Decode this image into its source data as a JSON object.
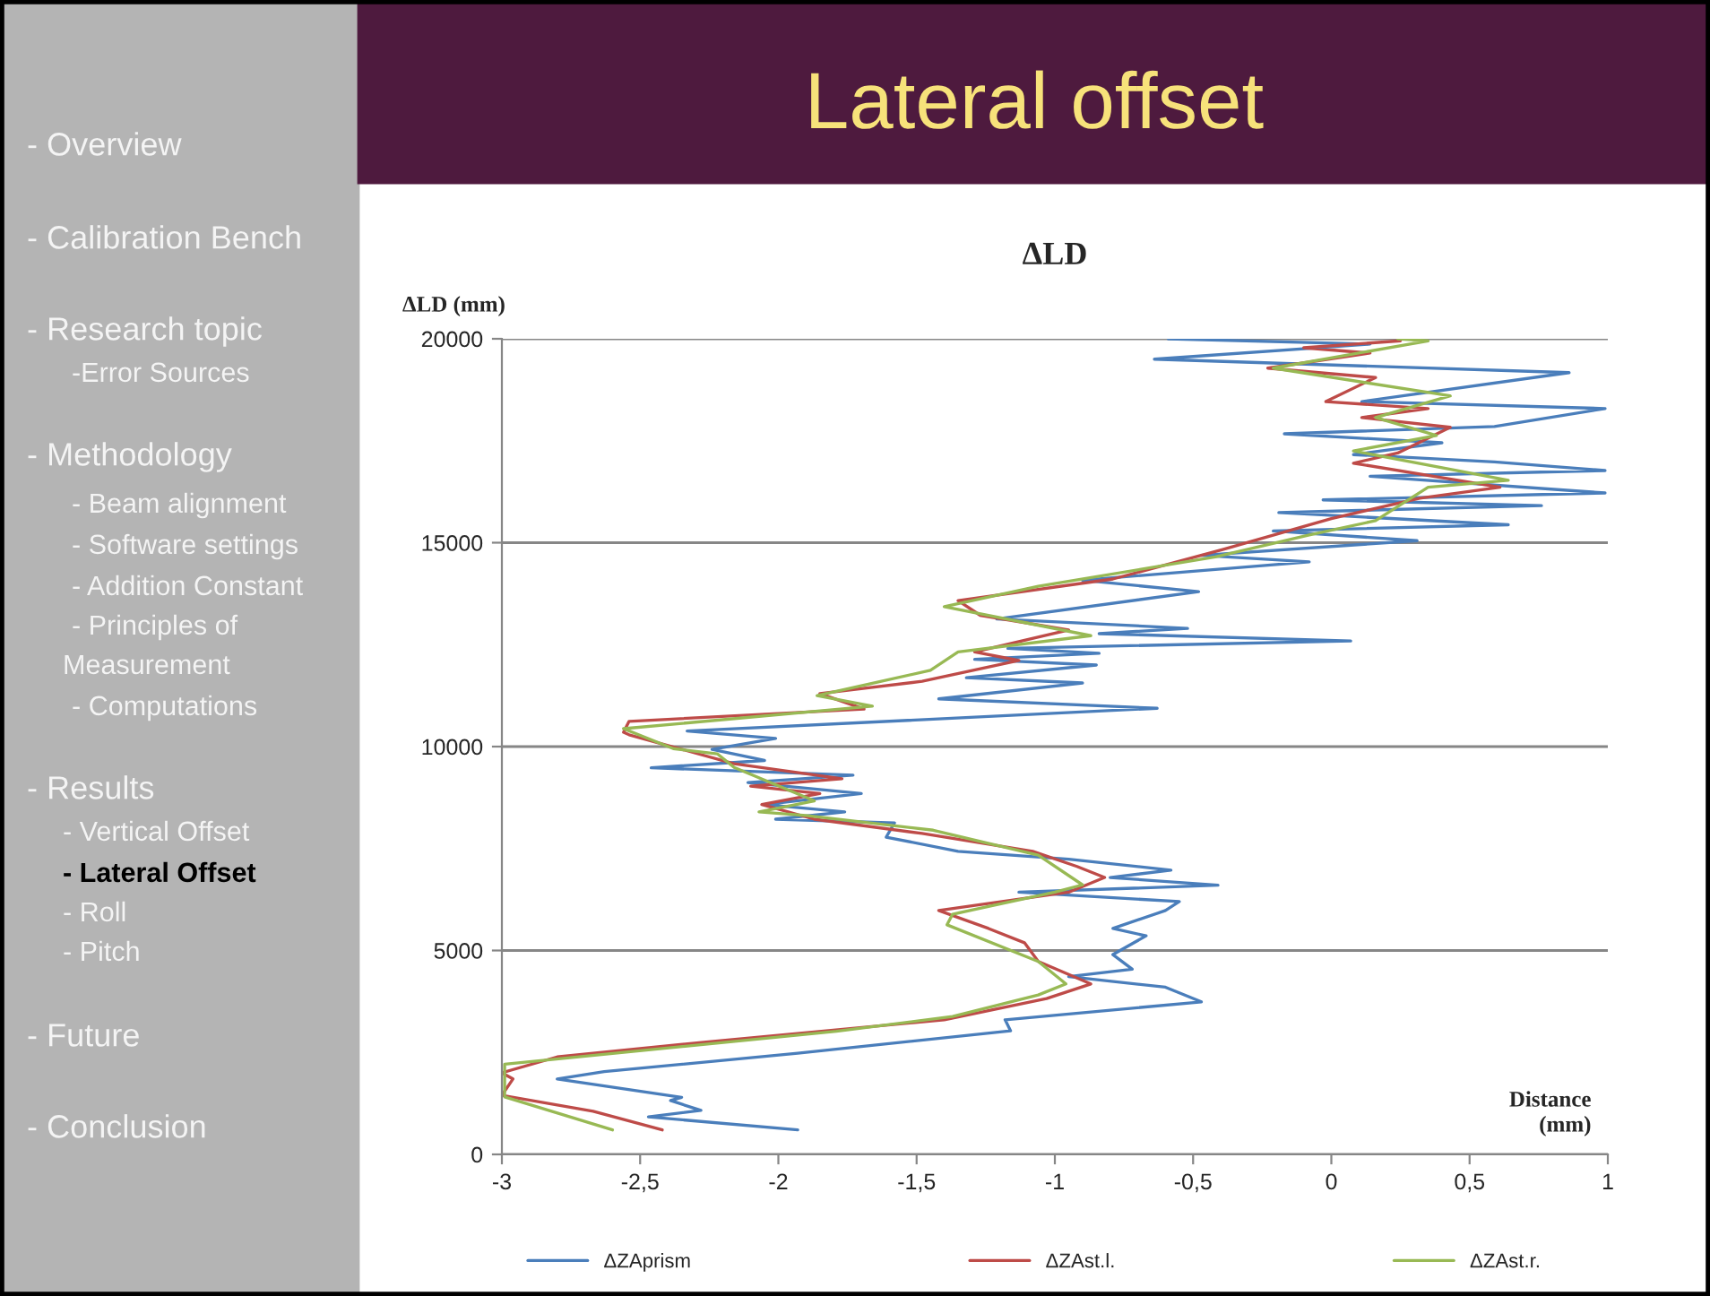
{
  "chart_data": {
    "type": "line",
    "title": "Lateral offset",
    "subtitle": "ΔLD",
    "ylabel": "ΔLD (mm)",
    "xlabel": "Distance (mm)",
    "xlim": [
      -3,
      1
    ],
    "xticks": [
      -3,
      {
        "value": -2.5,
        "label": "-2,5"
      },
      -2,
      {
        "value": -1.5,
        "label": "-1,5"
      },
      -1,
      {
        "value": -0.5,
        "label": "-0,5"
      },
      0,
      {
        "value": 0.5,
        "label": "0,5"
      },
      1
    ],
    "ylim": [
      0,
      20000
    ],
    "yticks": [
      0,
      5000,
      10000,
      15000,
      20000
    ],
    "grid": "y",
    "legend": "bottom",
    "line_style": "solid",
    "annotations": [
      "- Overview",
      "- Calibration Bench",
      "- Research topic",
      "-Error Sources",
      "- Methodology",
      "- Beam alignment",
      "- Software settings",
      "- Addition Constant",
      "- Principles of",
      "Measurement",
      "- Computations",
      "- Results",
      "- Vertical Offset",
      "- Lateral Offset",
      "- Roll",
      "- Pitch",
      "- Future",
      "- Conclusion"
    ],
    "series": [
      {
        "name": "ΔZAprism",
        "color": "#4a7ebb",
        "x": [
          -1.93,
          -2.47,
          -2.28,
          -2.39,
          -2.35,
          -2.8,
          -2.63,
          -1.93,
          -1.16,
          -1.18,
          -0.47,
          -0.6,
          -0.95,
          -0.72,
          -0.79,
          -0.67,
          -0.79,
          -0.6,
          -0.55,
          -1.13,
          -0.41,
          -0.8,
          -0.58,
          -0.95,
          -1.35,
          -1.61,
          -1.58,
          -2.01,
          -1.76,
          -2.05,
          -1.7,
          -2.11,
          -1.73,
          -2.46,
          -2.05,
          -2.24,
          -2.01,
          -2.33,
          -0.63,
          -1.42,
          -0.9,
          -1.32,
          -0.85,
          -1.29,
          -0.84,
          -1.17,
          0.07,
          -0.84,
          -0.52,
          -1.21,
          -0.48,
          -0.9,
          -0.08,
          -0.47,
          0.31,
          -0.21,
          0.64,
          -0.19,
          0.76,
          -0.03,
          0.99,
          0.14,
          0.99,
          0.59,
          0.08,
          0.4,
          -0.17,
          0.59,
          0.99,
          0.11,
          0.86,
          -0.64,
          0.14,
          -0.59
        ],
        "values": [
          600,
          920,
          1080,
          1320,
          1400,
          1850,
          2030,
          2480,
          3030,
          3300,
          3740,
          4100,
          4360,
          4540,
          4900,
          5360,
          5540,
          5980,
          6200,
          6430,
          6600,
          6790,
          6970,
          7240,
          7430,
          7780,
          8130,
          8220,
          8400,
          8580,
          8850,
          9120,
          9300,
          9480,
          9660,
          9930,
          10200,
          10380,
          10940,
          11170,
          11560,
          11690,
          12000,
          12140,
          12290,
          12410,
          12590,
          12770,
          12900,
          13130,
          13800,
          14080,
          14530,
          14690,
          15050,
          15290,
          15440,
          15740,
          15910,
          16050,
          16220,
          16630,
          16770,
          16980,
          17160,
          17450,
          17670,
          17850,
          18290,
          18460,
          19170,
          19500,
          19870,
          20000
        ]
      },
      {
        "name": "ΔZAst.l.",
        "color": "#be4b48",
        "x": [
          -2.42,
          -2.67,
          -3.0,
          -2.96,
          -3.0,
          -2.8,
          -2.27,
          -1.4,
          -1.03,
          -0.87,
          -1.06,
          -1.11,
          -1.24,
          -1.42,
          -0.95,
          -0.82,
          -0.92,
          -1.08,
          -1.48,
          -1.87,
          -2.06,
          -1.85,
          -2.1,
          -1.77,
          -2.16,
          -2.54,
          -2.56,
          -2.54,
          -1.69,
          -1.85,
          -1.48,
          -1.13,
          -1.29,
          -0.95,
          -1.27,
          -1.35,
          -0.79,
          -0.39,
          0.0,
          0.32,
          0.61,
          0.08,
          0.24,
          0.43,
          0.11,
          0.35,
          -0.02,
          0.16,
          -0.23,
          0.14,
          -0.1,
          0.25
        ],
        "values": [
          600,
          1060,
          1450,
          1850,
          2000,
          2390,
          2750,
          3300,
          3820,
          4180,
          4730,
          5190,
          5540,
          5980,
          6430,
          6790,
          7060,
          7430,
          7870,
          8220,
          8580,
          8850,
          9030,
          9210,
          9580,
          10290,
          10350,
          10620,
          10920,
          11300,
          11600,
          12110,
          12320,
          12860,
          13220,
          13580,
          14110,
          14840,
          15590,
          16090,
          16360,
          16950,
          17200,
          17830,
          18070,
          18290,
          18460,
          19050,
          19280,
          19650,
          19780,
          19950
        ]
      },
      {
        "name": "ΔZAst.r.",
        "color": "#98b954",
        "x": [
          -2.6,
          -2.99,
          -2.99,
          -1.79,
          -1.37,
          -1.06,
          -0.96,
          -1.06,
          -1.39,
          -1.37,
          -1.0,
          -0.9,
          -1.06,
          -1.44,
          -1.9,
          -2.07,
          -1.87,
          -2.16,
          -2.22,
          -2.38,
          -2.56,
          -1.66,
          -1.86,
          -1.45,
          -1.35,
          -0.87,
          -1.4,
          -1.06,
          -0.42,
          -0.08,
          0.16,
          0.35,
          0.64,
          0.08,
          0.38,
          0.16,
          0.43,
          -0.21,
          0.35,
          0.24
        ],
        "values": [
          600,
          1410,
          2210,
          3020,
          3380,
          3910,
          4180,
          4730,
          5630,
          5890,
          6430,
          6610,
          7340,
          7950,
          8310,
          8400,
          8670,
          9490,
          9820,
          9950,
          10440,
          10990,
          11250,
          11870,
          12320,
          12720,
          13430,
          13930,
          14650,
          15190,
          15540,
          16360,
          16530,
          17250,
          17630,
          18070,
          18600,
          19280,
          19950,
          20000
        ]
      }
    ]
  }
}
